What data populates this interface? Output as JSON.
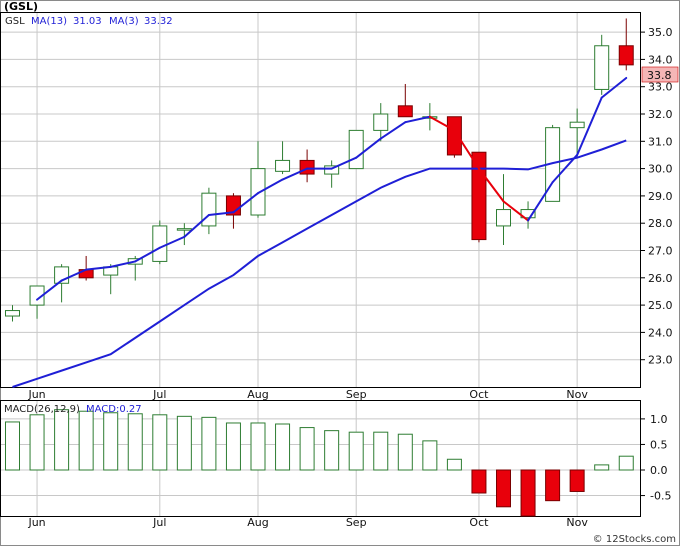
{
  "title": "(GSL)",
  "watermark": "© 12Stocks.com",
  "colors": {
    "up": "#2e7d32",
    "down": "#e8000b",
    "ma_long": "#1f1fd6",
    "ma_short": "#1f1fd6",
    "ma_short_down": "#e8000b",
    "price_tag_bg": "#f4b6b6",
    "grid": "#c8c8c8"
  },
  "price_panel": {
    "ticker": "GSL",
    "legend_ma13": "MA(13)",
    "legend_ma13_value": "31.03",
    "legend_ma3": "MA(3)",
    "legend_ma3_value": "33.32",
    "last_price_tag": "33.8",
    "y_tick_labels": [
      "23.0",
      "24.0",
      "25.0",
      "26.0",
      "27.0",
      "28.0",
      "29.0",
      "30.0",
      "31.0",
      "32.0",
      "33.0",
      "34.0",
      "35.0"
    ],
    "month_labels": [
      "Jun",
      "Jul",
      "Aug",
      "Sep",
      "Oct",
      "Nov"
    ]
  },
  "macd_panel": {
    "legend_macd": "MACD(26,12,9)",
    "legend_macd_value": "MACD:0.27",
    "y_tick_labels": [
      "1.0",
      "0.5",
      "0.0",
      "-0.5"
    ],
    "month_labels": [
      "Jun",
      "Jul",
      "Aug",
      "Sep",
      "Oct",
      "Nov"
    ]
  },
  "chart_data": [
    {
      "type": "candlestick",
      "title": "(GSL)",
      "y_axis_side": "right",
      "ylim": [
        22.0,
        35.7
      ],
      "grid": true,
      "months": [
        "Jun",
        "Jul",
        "Aug",
        "Sep",
        "Oct",
        "Nov"
      ],
      "month_start_bar": [
        1,
        6,
        10,
        14,
        19,
        23
      ],
      "candles": [
        {
          "o": 24.6,
          "h": 25.0,
          "l": 24.4,
          "c": 24.8
        },
        {
          "o": 25.0,
          "h": 25.7,
          "l": 24.5,
          "c": 25.7
        },
        {
          "o": 25.8,
          "h": 26.5,
          "l": 25.1,
          "c": 26.4
        },
        {
          "o": 26.3,
          "h": 26.8,
          "l": 25.9,
          "c": 26.0
        },
        {
          "o": 26.1,
          "h": 26.5,
          "l": 25.4,
          "c": 26.4
        },
        {
          "o": 26.5,
          "h": 26.8,
          "l": 25.9,
          "c": 26.7
        },
        {
          "o": 26.6,
          "h": 28.1,
          "l": 26.5,
          "c": 27.9
        },
        {
          "o": 27.8,
          "h": 28.0,
          "l": 27.2,
          "c": 27.8
        },
        {
          "o": 27.9,
          "h": 29.3,
          "l": 27.6,
          "c": 29.1
        },
        {
          "o": 29.0,
          "h": 29.1,
          "l": 27.8,
          "c": 28.3
        },
        {
          "o": 28.3,
          "h": 31.0,
          "l": 28.2,
          "c": 30.0
        },
        {
          "o": 29.9,
          "h": 31.0,
          "l": 29.8,
          "c": 30.3
        },
        {
          "o": 30.3,
          "h": 30.7,
          "l": 29.5,
          "c": 29.8
        },
        {
          "o": 29.8,
          "h": 30.3,
          "l": 29.3,
          "c": 30.1
        },
        {
          "o": 30.0,
          "h": 31.4,
          "l": 30.0,
          "c": 31.4
        },
        {
          "o": 31.4,
          "h": 32.4,
          "l": 31.0,
          "c": 32.0
        },
        {
          "o": 32.3,
          "h": 33.1,
          "l": 31.9,
          "c": 31.9
        },
        {
          "o": 31.9,
          "h": 32.4,
          "l": 31.4,
          "c": 31.9
        },
        {
          "o": 31.9,
          "h": 31.9,
          "l": 30.4,
          "c": 30.5
        },
        {
          "o": 30.6,
          "h": 30.6,
          "l": 27.3,
          "c": 27.4
        },
        {
          "o": 27.9,
          "h": 29.8,
          "l": 27.2,
          "c": 28.5
        },
        {
          "o": 28.2,
          "h": 28.8,
          "l": 27.8,
          "c": 28.5
        },
        {
          "o": 28.8,
          "h": 31.6,
          "l": 28.8,
          "c": 31.5
        },
        {
          "o": 31.5,
          "h": 32.2,
          "l": 30.4,
          "c": 31.7
        },
        {
          "o": 32.9,
          "h": 34.9,
          "l": 32.7,
          "c": 34.5
        },
        {
          "o": 34.5,
          "h": 35.5,
          "l": 33.6,
          "c": 33.8
        }
      ],
      "series": [
        {
          "name": "MA(13)",
          "values": [
            22.0,
            22.3,
            22.6,
            22.9,
            23.2,
            23.8,
            24.4,
            25.0,
            25.6,
            26.1,
            26.8,
            27.3,
            27.8,
            28.3,
            28.8,
            29.3,
            29.7,
            30.0,
            30.0,
            30.0,
            30.0,
            29.97,
            30.2,
            30.4,
            30.7,
            31.03
          ]
        },
        {
          "name": "MA(3)",
          "values": [
            null,
            25.2,
            25.9,
            26.3,
            26.4,
            26.6,
            27.1,
            27.5,
            28.3,
            28.4,
            29.1,
            29.6,
            30.0,
            30.0,
            30.4,
            31.1,
            31.7,
            31.9,
            31.4,
            30.0,
            28.8,
            28.1,
            29.5,
            30.5,
            32.6,
            33.32
          ]
        }
      ]
    },
    {
      "type": "bar",
      "title": "MACD(26,12,9)",
      "y_axis_side": "right",
      "ylim": [
        -0.9,
        1.35
      ],
      "grid": true,
      "months": [
        "Jun",
        "Jul",
        "Aug",
        "Sep",
        "Oct",
        "Nov"
      ],
      "month_start_bar": [
        1,
        6,
        10,
        14,
        19,
        23
      ],
      "values": [
        0.94,
        1.08,
        1.18,
        1.15,
        1.12,
        1.1,
        1.08,
        1.05,
        1.03,
        0.92,
        0.92,
        0.9,
        0.83,
        0.77,
        0.74,
        0.74,
        0.7,
        0.57,
        0.21,
        -0.45,
        -0.72,
        -0.9,
        -0.6,
        -0.42,
        0.1,
        0.27
      ]
    }
  ]
}
